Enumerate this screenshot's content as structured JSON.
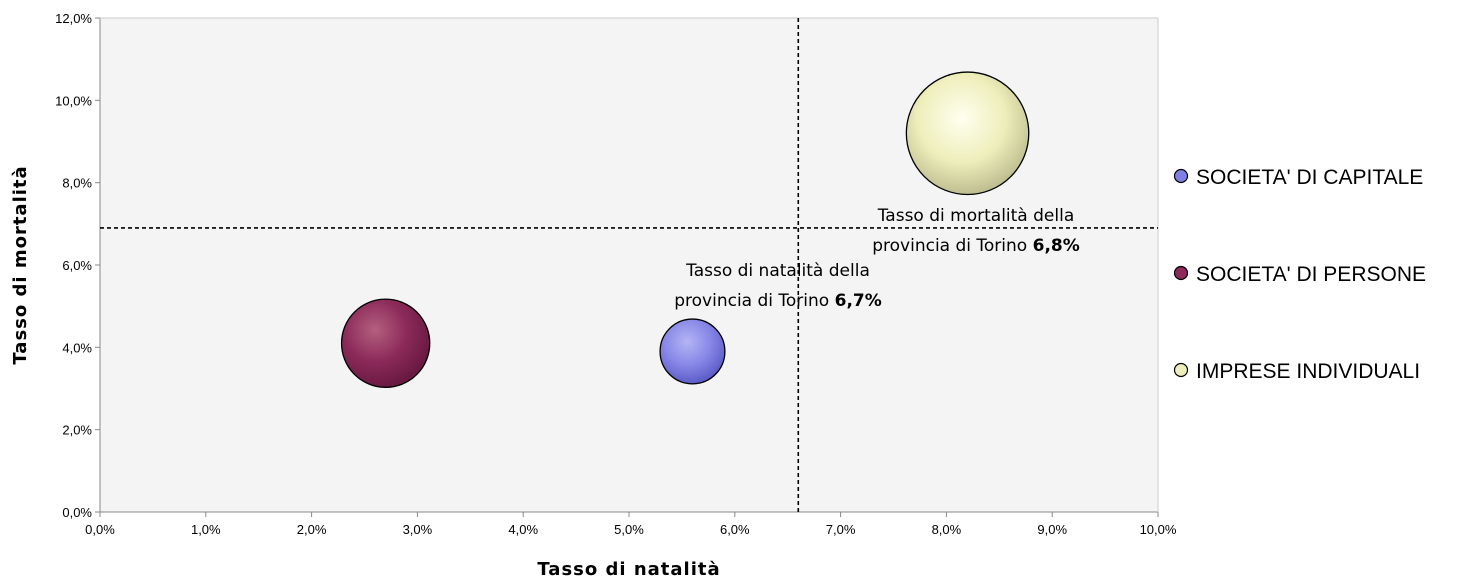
{
  "chart_data": {
    "type": "bubble",
    "xlabel": "Tasso di natalità",
    "ylabel": "Tasso di mortalità",
    "xlim": [
      0,
      10
    ],
    "ylim": [
      0,
      12
    ],
    "x_ticks": [
      "0,0%",
      "1,0%",
      "2,0%",
      "3,0%",
      "4,0%",
      "5,0%",
      "6,0%",
      "7,0%",
      "8,0%",
      "9,0%",
      "10,0%"
    ],
    "y_ticks": [
      "0,0%",
      "2,0%",
      "4,0%",
      "6,0%",
      "8,0%",
      "10,0%",
      "12,0%"
    ],
    "grid": false,
    "legend_position": "right",
    "series": [
      {
        "name": "SOCIETA' DI CAPITALE",
        "x": 5.6,
        "y": 3.9,
        "relative_size": 0.36,
        "color": "#7f7fe6"
      },
      {
        "name": "SOCIETA' DI PERSONE",
        "x": 2.7,
        "y": 4.1,
        "relative_size": 0.49,
        "color": "#8c2a5a"
      },
      {
        "name": "IMPRESE INDIVIDUALI",
        "x": 8.2,
        "y": 9.2,
        "relative_size": 0.68,
        "color": "#eeeebb"
      }
    ],
    "reference_lines": [
      {
        "orientation": "vertical",
        "value": 6.6,
        "style": "dashed"
      },
      {
        "orientation": "horizontal",
        "value": 6.9,
        "style": "dashed"
      }
    ],
    "annotations": [
      {
        "line1": "Tasso di natalità della",
        "line2": "provincia di Torino",
        "value": "6,7%"
      },
      {
        "line1": "Tasso di mortalità della",
        "line2": "provincia di Torino",
        "value": "6,8%"
      }
    ]
  }
}
